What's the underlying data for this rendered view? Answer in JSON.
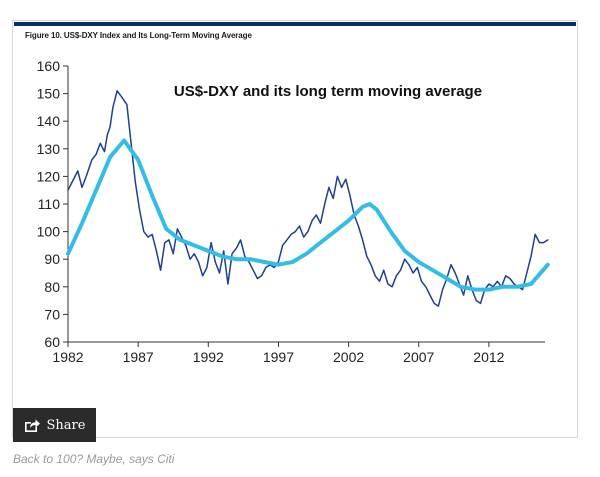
{
  "figure_title": "Figure 10. US$-DXY Index and Its Long-Term Moving Average",
  "share_label": "Share",
  "caption": "Back to 100? Maybe, says Citi",
  "chart_data": {
    "type": "line",
    "title": "US$-DXY and its long term moving average",
    "xlabel": "",
    "ylabel": "",
    "xlim": [
      1982,
      2016
    ],
    "ylim": [
      60,
      160
    ],
    "xticks": [
      1982,
      1987,
      1992,
      1997,
      2002,
      2007,
      2012
    ],
    "yticks": [
      60,
      70,
      80,
      90,
      100,
      110,
      120,
      130,
      140,
      150,
      160
    ],
    "grid": false,
    "series": [
      {
        "name": "US$-DXY Index",
        "color": "#1f3f8f",
        "x": [
          1982,
          1982.3,
          1982.7,
          1983,
          1983.3,
          1983.7,
          1984,
          1984.3,
          1984.6,
          1984.8,
          1985,
          1985.2,
          1985.5,
          1985.8,
          1986.2,
          1986.5,
          1986.8,
          1987.1,
          1987.4,
          1987.7,
          1988,
          1988.3,
          1988.6,
          1988.9,
          1989.2,
          1989.5,
          1989.8,
          1990.1,
          1990.4,
          1990.7,
          1991,
          1991.3,
          1991.6,
          1991.9,
          1992.2,
          1992.5,
          1992.8,
          1993.1,
          1993.4,
          1993.7,
          1994,
          1994.3,
          1994.6,
          1994.9,
          1995.2,
          1995.5,
          1995.8,
          1996.1,
          1996.4,
          1996.7,
          1997,
          1997.3,
          1997.6,
          1997.9,
          1998.2,
          1998.5,
          1998.8,
          1999.1,
          1999.4,
          1999.7,
          2000,
          2000.3,
          2000.6,
          2000.9,
          2001.2,
          2001.5,
          2001.8,
          2002.1,
          2002.4,
          2002.7,
          2003,
          2003.3,
          2003.6,
          2003.9,
          2004.2,
          2004.5,
          2004.8,
          2005.1,
          2005.4,
          2005.7,
          2006,
          2006.3,
          2006.6,
          2006.9,
          2007.2,
          2007.5,
          2007.8,
          2008.1,
          2008.4,
          2008.7,
          2009,
          2009.3,
          2009.6,
          2009.9,
          2010.2,
          2010.5,
          2010.8,
          2011.1,
          2011.4,
          2011.7,
          2012,
          2012.3,
          2012.6,
          2012.9,
          2013.2,
          2013.5,
          2013.8,
          2014.1,
          2014.4,
          2014.7,
          2015,
          2015.3,
          2015.6,
          2015.9,
          2016.2
        ],
        "values": [
          115,
          118,
          122,
          116,
          120,
          126,
          128,
          132,
          129,
          135,
          138,
          145,
          151,
          149,
          146,
          132,
          118,
          108,
          100,
          98,
          99,
          93,
          86,
          96,
          97,
          92,
          101,
          98,
          95,
          90,
          92,
          89,
          84,
          87,
          96,
          89,
          85,
          93,
          81,
          92,
          94,
          97,
          91,
          89,
          86,
          83,
          84,
          87,
          88,
          87,
          89,
          95,
          97,
          99,
          100,
          102,
          98,
          100,
          104,
          106,
          103,
          110,
          116,
          112,
          120,
          116,
          119,
          113,
          106,
          102,
          97,
          91,
          88,
          84,
          82,
          86,
          81,
          80,
          84,
          86,
          90,
          88,
          85,
          87,
          82,
          80,
          77,
          74,
          73,
          79,
          83,
          88,
          85,
          81,
          77,
          84,
          79,
          75,
          74,
          79,
          81,
          80,
          82,
          80,
          84,
          83,
          81,
          80,
          79,
          85,
          91,
          99,
          96,
          96,
          97
        ]
      },
      {
        "name": "Long-term moving average",
        "color": "#33bde6",
        "x": [
          1982,
          1983,
          1984,
          1985,
          1986,
          1987,
          1988,
          1989,
          1990,
          1991,
          1992,
          1993,
          1994,
          1995,
          1996,
          1997,
          1998,
          1999,
          2000,
          2001,
          2002,
          2003,
          2003.5,
          2004,
          2005,
          2006,
          2007,
          2008,
          2009,
          2010,
          2011,
          2012,
          2013,
          2014,
          2015,
          2016.2
        ],
        "values": [
          92,
          103,
          115,
          127,
          133,
          126,
          113,
          101,
          97,
          95,
          93,
          91,
          90,
          90,
          89,
          88,
          89,
          92,
          96,
          100,
          104,
          109,
          110,
          108,
          100,
          93,
          89,
          86,
          83,
          80,
          79,
          79,
          80,
          80,
          81,
          88
        ]
      }
    ]
  }
}
